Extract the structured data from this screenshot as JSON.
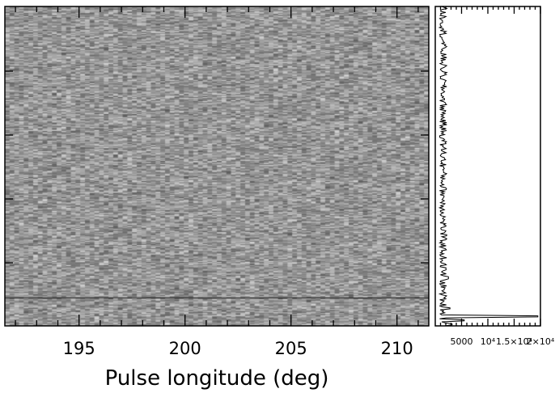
{
  "chart_data": [
    {
      "type": "heatmap",
      "title": "",
      "xlabel": "Pulse longitude (deg)",
      "ylabel": "",
      "xlim": [
        191.5,
        211.5
      ],
      "x_ticks": [
        195,
        200,
        205,
        210
      ],
      "x_tick_labels": [
        "195",
        "200",
        "205",
        "210"
      ],
      "colormap": "grayscale",
      "grid": false,
      "legend": "none"
    },
    {
      "type": "line",
      "title": "",
      "xlabel": "",
      "ylabel": "",
      "xlim": [
        0,
        20000
      ],
      "x_ticks": [
        5000,
        10000,
        15000,
        20000
      ],
      "x_tick_labels": [
        "5000",
        "10⁴",
        "1.5×10⁴",
        "2×10⁴"
      ],
      "baseline": 1500,
      "spikes": [
        {
          "row_fraction": 0.85,
          "value": 2500
        },
        {
          "row_fraction": 0.945,
          "value": 2800
        },
        {
          "row_fraction": 0.97,
          "value": 19500
        },
        {
          "row_fraction": 0.983,
          "value": 5500
        },
        {
          "row_fraction": 0.995,
          "value": 3200
        }
      ],
      "grid": false,
      "legend": "none"
    }
  ]
}
